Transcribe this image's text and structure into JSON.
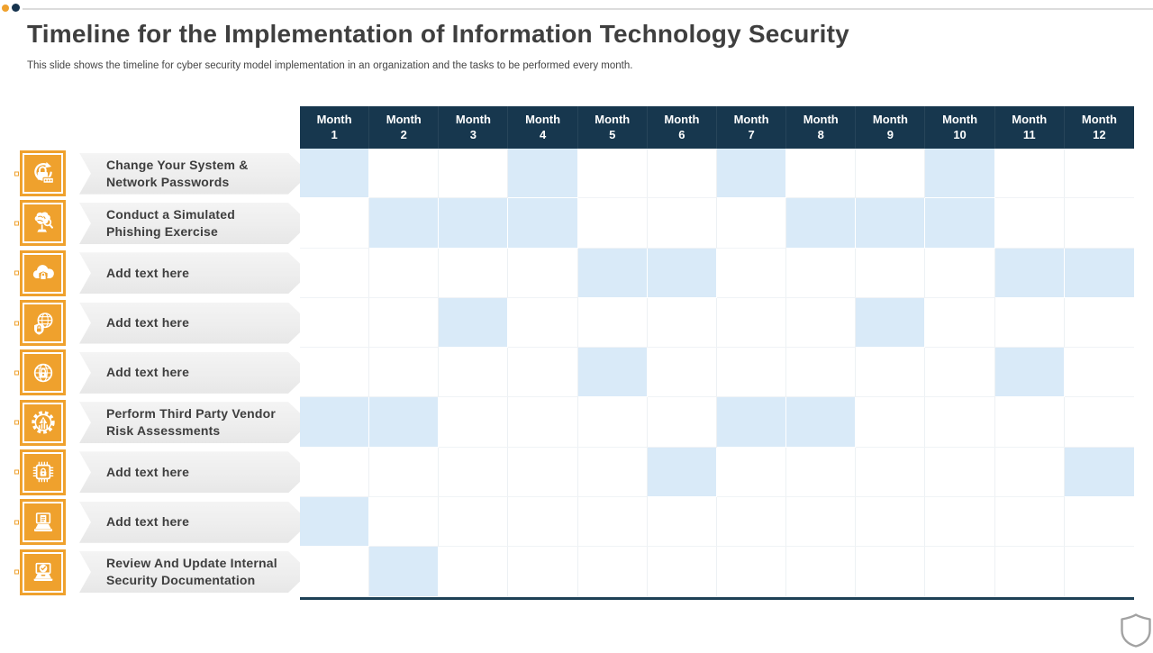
{
  "slide": {
    "title": "Timeline for the Implementation of Information Technology Security",
    "subtitle": "This slide shows the timeline for cyber security model implementation in an organization and the tasks to be performed every month."
  },
  "colors": {
    "accent_orange": "#EFA12D",
    "header_navy": "#17374E",
    "table_bottom_border_navy": "#1E4156",
    "highlight_blue": "#D9EAF8",
    "banner_gray": "#EFEFEF",
    "text_dark": "#3F3F3F",
    "top_line_gray": "#DCDCDC"
  },
  "chart_data": {
    "type": "gantt",
    "title": "Timeline for the Implementation of Information Technology Security",
    "month_label": "Month",
    "months": [
      1,
      2,
      3,
      4,
      5,
      6,
      7,
      8,
      9,
      10,
      11,
      12
    ],
    "legend_position": "none",
    "grid": true,
    "rows": [
      {
        "task": "Change Your System & Network Passwords",
        "icon": "password-refresh-lock-icon",
        "active_months": [
          1,
          4,
          7,
          10
        ]
      },
      {
        "task": "Conduct a Simulated Phishing Exercise",
        "icon": "phishing-simulation-icon",
        "active_months": [
          2,
          3,
          4,
          8,
          9,
          10
        ]
      },
      {
        "task": "Add text here",
        "icon": "secure-cloud-icon",
        "active_months": [
          5,
          6,
          11,
          12
        ]
      },
      {
        "task": "Add text here",
        "icon": "global-shield-icon",
        "active_months": [
          3,
          9
        ]
      },
      {
        "task": "Add text here",
        "icon": "globe-lock-icon",
        "active_months": [
          5,
          11
        ]
      },
      {
        "task": "Perform Third Party Vendor Risk Assessments",
        "icon": "gear-risk-icon",
        "active_months": [
          1,
          2,
          7,
          8
        ]
      },
      {
        "task": "Add text here",
        "icon": "chip-lock-icon",
        "active_months": [
          6,
          12
        ]
      },
      {
        "task": "Add text here",
        "icon": "laptop-document-icon",
        "active_months": [
          1
        ]
      },
      {
        "task": "Review And Update Internal Security Documentation",
        "icon": "laptop-check-icon",
        "active_months": [
          2
        ]
      }
    ]
  },
  "footer": {
    "corner_icon": "shield-outline-icon"
  }
}
